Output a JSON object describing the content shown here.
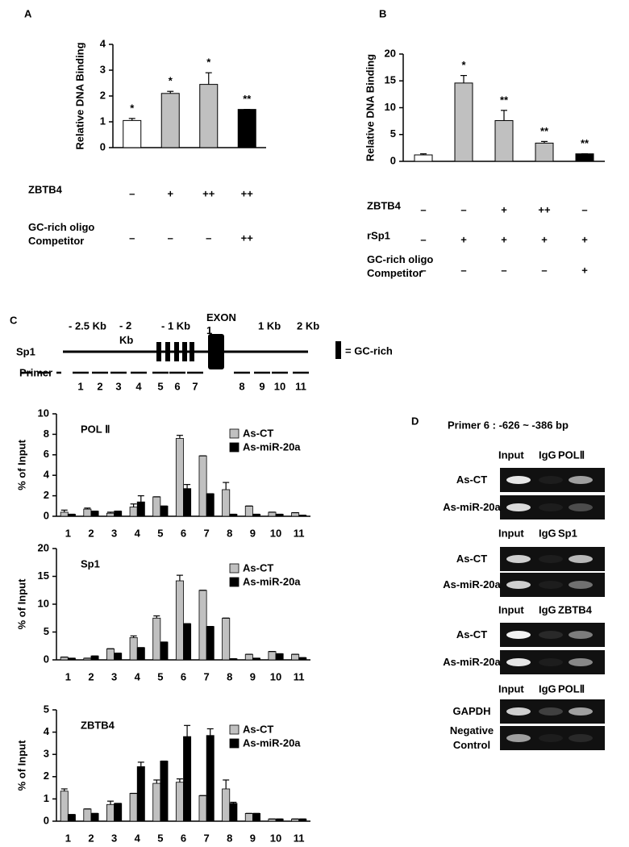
{
  "chart_data": [
    {
      "type": "bar",
      "panel": "A",
      "ylabel": "Relative DNA Binding",
      "ylim": [
        0,
        4
      ],
      "yticks": [
        0,
        1,
        2,
        3,
        4
      ],
      "values": [
        1.05,
        2.1,
        2.45,
        1.48
      ],
      "errors": [
        0.08,
        0.08,
        0.45,
        0
      ],
      "colors": [
        "#ffffff",
        "#c0c0c0",
        "#c0c0c0",
        "#000000"
      ],
      "annotations": [
        "*",
        "*",
        "*",
        "**"
      ],
      "conditions": [
        {
          "name": "ZBTB4",
          "levels": [
            "–",
            "+",
            "++",
            "++"
          ]
        },
        {
          "name": "GC-rich oligo Competitor",
          "levels": [
            "–",
            "–",
            "–",
            "++"
          ]
        }
      ]
    },
    {
      "type": "bar",
      "panel": "B",
      "ylabel": "Relative DNA Binding",
      "ylim": [
        0,
        20
      ],
      "yticks": [
        0,
        5,
        10,
        15,
        20
      ],
      "values": [
        1.2,
        14.6,
        7.6,
        3.4,
        1.4
      ],
      "errors": [
        0.2,
        1.4,
        1.9,
        0.3,
        0
      ],
      "colors": [
        "#ffffff",
        "#c0c0c0",
        "#c0c0c0",
        "#c0c0c0",
        "#000000"
      ],
      "annotations": [
        null,
        "*",
        "**",
        "**",
        "**"
      ],
      "conditions": [
        {
          "name": "ZBTB4",
          "levels": [
            "–",
            "–",
            "+",
            "++",
            "–"
          ]
        },
        {
          "name": "rSp1",
          "levels": [
            "–",
            "+",
            "+",
            "+",
            "+"
          ]
        },
        {
          "name": "GC-rich oligo Competitor",
          "levels": [
            "–",
            "–",
            "–",
            "–",
            "+"
          ]
        }
      ]
    },
    {
      "type": "grouped_bar",
      "title": "POL Ⅱ",
      "ylabel": "% of Input",
      "ylim": [
        0,
        10
      ],
      "yticks": [
        0,
        2,
        4,
        6,
        8,
        10
      ],
      "legend": "top-right",
      "categories": [
        "1",
        "2",
        "3",
        "4",
        "5",
        "6",
        "7",
        "8",
        "9",
        "10",
        "11"
      ],
      "series": [
        {
          "name": "As-CT",
          "color": "#c0c0c0",
          "values": [
            0.4,
            0.7,
            0.3,
            0.9,
            1.9,
            7.6,
            5.9,
            2.6,
            1.0,
            0.4,
            0.35
          ],
          "errors": [
            0.2,
            0.1,
            0.1,
            0.3,
            0,
            0.3,
            0,
            0.7,
            0,
            0,
            0
          ]
        },
        {
          "name": "As-miR-20a",
          "color": "#000000",
          "values": [
            0.2,
            0.5,
            0.5,
            1.4,
            1.0,
            2.7,
            2.2,
            0.2,
            0.2,
            0.2,
            0.1
          ],
          "errors": [
            0,
            0,
            0,
            0.6,
            0,
            0.4,
            0,
            0,
            0,
            0,
            0
          ]
        }
      ]
    },
    {
      "type": "grouped_bar",
      "title": "Sp1",
      "ylabel": "% of Input",
      "ylim": [
        0,
        20
      ],
      "yticks": [
        0,
        5,
        10,
        15,
        20
      ],
      "legend": "top-right",
      "categories": [
        "1",
        "2",
        "3",
        "4",
        "5",
        "6",
        "7",
        "8",
        "9",
        "10",
        "11"
      ],
      "series": [
        {
          "name": "As-CT",
          "color": "#c0c0c0",
          "values": [
            0.5,
            0.3,
            2.0,
            4.0,
            7.5,
            14.2,
            12.5,
            7.5,
            1.0,
            1.5,
            1.0
          ],
          "errors": [
            0,
            0,
            0,
            0.3,
            0.4,
            1.0,
            0,
            0,
            0,
            0,
            0
          ]
        },
        {
          "name": "As-miR-20a",
          "color": "#000000",
          "values": [
            0.3,
            0.7,
            1.2,
            2.2,
            3.2,
            6.5,
            6.0,
            0.2,
            0.3,
            1.1,
            0.4
          ],
          "errors": [
            0,
            0,
            0,
            0,
            0,
            0,
            0,
            0,
            0,
            0,
            0
          ]
        }
      ]
    },
    {
      "type": "grouped_bar",
      "title": "ZBTB4",
      "ylabel": "% of Input",
      "ylim": [
        0,
        5
      ],
      "yticks": [
        0,
        1,
        2,
        3,
        4,
        5
      ],
      "legend": "top-right",
      "categories": [
        "1",
        "2",
        "3",
        "4",
        "5",
        "6",
        "7",
        "8",
        "9",
        "10",
        "11"
      ],
      "series": [
        {
          "name": "As-CT",
          "color": "#c0c0c0",
          "values": [
            1.35,
            0.55,
            0.75,
            1.25,
            1.7,
            1.75,
            1.15,
            1.45,
            0.35,
            0.1,
            0.1
          ],
          "errors": [
            0.1,
            0,
            0.15,
            0,
            0.15,
            0.15,
            0,
            0.4,
            0,
            0,
            0
          ]
        },
        {
          "name": "As-miR-20a",
          "color": "#000000",
          "values": [
            0.3,
            0.35,
            0.8,
            2.45,
            2.7,
            3.8,
            3.85,
            0.8,
            0.35,
            0.1,
            0.1
          ],
          "errors": [
            0,
            0,
            0,
            0.2,
            0,
            0.5,
            0.3,
            0.05,
            0,
            0,
            0
          ]
        }
      ]
    }
  ],
  "diagram": {
    "panel": "C",
    "gene": "Sp1",
    "primer_label": "Primer",
    "positions": [
      "- 2.5 Kb",
      "- 2 Kb",
      "- 1 Kb",
      "1 Kb",
      "2 Kb"
    ],
    "exon": "EXON 1",
    "gc_legend": "= GC-rich",
    "primers": [
      "1",
      "2",
      "3",
      "4",
      "5",
      "6",
      "7",
      "8",
      "9",
      "10",
      "11"
    ]
  },
  "gel": {
    "panel": "D",
    "title": "Primer 6 : -626 ~ -386 bp",
    "blocks": [
      {
        "columns": [
          "Input",
          "IgG",
          "POLⅡ"
        ],
        "rows": [
          "As-CT",
          "As-miR-20a"
        ]
      },
      {
        "columns": [
          "Input",
          "IgG",
          "Sp1"
        ],
        "rows": [
          "As-CT",
          "As-miR-20a"
        ]
      },
      {
        "columns": [
          "Input",
          "IgG",
          "ZBTB4"
        ],
        "rows": [
          "As-CT",
          "As-miR-20a"
        ]
      },
      {
        "columns": [
          "Input",
          "IgG",
          "POLⅡ"
        ],
        "rows": [
          "GAPDH",
          "Negative Control"
        ]
      }
    ]
  }
}
